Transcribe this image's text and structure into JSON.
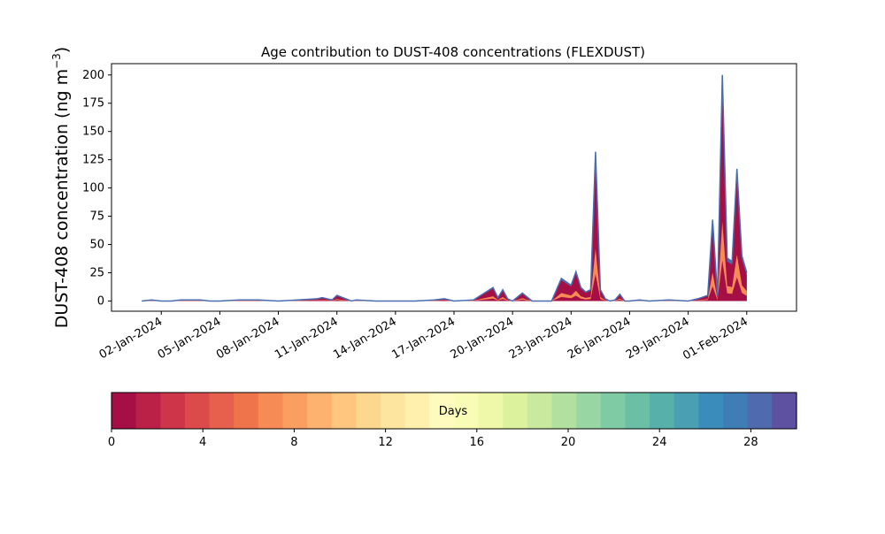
{
  "chart_data": {
    "type": "area",
    "title": "Age contribution to DUST-408 concentrations (FLEXDUST)",
    "ylabel_main": "DUST-408 concentration (ng m",
    "ylabel_exp": "−3",
    "ylabel_close": ")",
    "xlabel": "",
    "ylim": [
      -9,
      210
    ],
    "yticks": [
      0,
      25,
      50,
      75,
      100,
      125,
      150,
      175,
      200
    ],
    "xlim_days": [
      -1.55,
      33.55
    ],
    "xtick_labels": [
      "02-Jan-2024",
      "05-Jan-2024",
      "08-Jan-2024",
      "11-Jan-2024",
      "14-Jan-2024",
      "17-Jan-2024",
      "20-Jan-2024",
      "23-Jan-2024",
      "26-Jan-2024",
      "29-Jan-2024",
      "01-Feb-2024"
    ],
    "xtick_days": [
      1,
      4,
      7,
      10,
      13,
      16,
      19,
      22,
      25,
      28,
      31
    ],
    "grid": false,
    "series_note": "stacked by particle age (days 0–30); top envelope shown",
    "total_series": {
      "x": [
        "2024-01-01",
        "2024-01-01T12",
        "2024-01-02",
        "2024-01-02T12",
        "2024-01-03",
        "2024-01-04",
        "2024-01-04T12",
        "2024-01-05",
        "2024-01-06",
        "2024-01-07",
        "2024-01-08",
        "2024-01-09",
        "2024-01-10",
        "2024-01-10T06",
        "2024-01-10T18",
        "2024-01-11",
        "2024-01-11T18",
        "2024-01-12",
        "2024-01-13",
        "2024-01-14",
        "2024-01-15",
        "2024-01-16",
        "2024-01-16T12",
        "2024-01-17",
        "2024-01-18",
        "2024-01-19",
        "2024-01-19T06",
        "2024-01-19T12",
        "2024-01-19T18",
        "2024-01-20",
        "2024-01-20T12",
        "2024-01-21",
        "2024-01-21T12",
        "2024-01-22",
        "2024-01-22T12",
        "2024-01-23",
        "2024-01-23T06",
        "2024-01-23T12",
        "2024-01-23T18",
        "2024-01-24",
        "2024-01-24T06",
        "2024-01-24T12",
        "2024-01-24T18",
        "2024-01-25",
        "2024-01-25T06",
        "2024-01-25T12",
        "2024-01-25T18",
        "2024-01-26",
        "2024-01-26T12",
        "2024-01-27",
        "2024-01-28",
        "2024-01-29",
        "2024-01-29T12",
        "2024-01-30",
        "2024-01-30T06",
        "2024-01-30T12",
        "2024-01-30T18",
        "2024-01-31",
        "2024-01-31T06",
        "2024-01-31T12",
        "2024-01-31T18",
        "2024-02-01"
      ],
      "y": [
        0,
        1,
        0,
        0,
        1,
        1,
        0,
        0,
        1,
        1,
        0,
        1,
        2,
        3,
        1,
        5,
        0,
        1,
        0,
        0,
        0,
        1,
        2,
        0,
        1,
        12,
        3,
        10,
        2,
        0,
        7,
        0,
        0,
        0,
        20,
        14,
        26,
        12,
        8,
        10,
        132,
        10,
        2,
        0,
        1,
        6,
        0,
        0,
        1,
        0,
        1,
        0,
        2,
        5,
        72,
        5,
        200,
        38,
        35,
        117,
        40,
        25
      ]
    },
    "colorbar": {
      "label": "Days",
      "range": [
        0,
        30
      ],
      "ticks": [
        0,
        4,
        8,
        12,
        16,
        20,
        24,
        28
      ],
      "colors": [
        "#a50f45",
        "#bb2146",
        "#cf3548",
        "#dc4a4c",
        "#e7604d",
        "#f0744b",
        "#f78b56",
        "#fb9f61",
        "#fdb36f",
        "#fec67e",
        "#fed78e",
        "#fee59f",
        "#fff1ad",
        "#fffbbf",
        "#f8fcb5",
        "#eef8a8",
        "#dcf29d",
        "#c8e99e",
        "#b2e09f",
        "#98d6a4",
        "#7fcba4",
        "#6abfa5",
        "#57b0aa",
        "#4a9fb2",
        "#3a8dbb",
        "#3f7db7",
        "#4f6aae",
        "#5e51a2"
      ]
    }
  }
}
